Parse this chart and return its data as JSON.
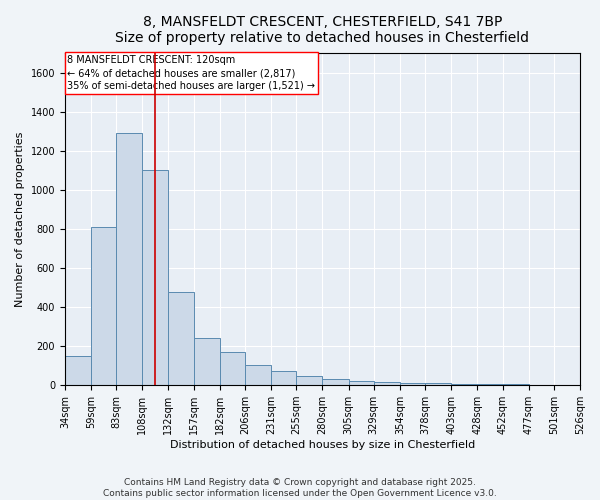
{
  "title_line1": "8, MANSFELDT CRESCENT, CHESTERFIELD, S41 7BP",
  "title_line2": "Size of property relative to detached houses in Chesterfield",
  "xlabel": "Distribution of detached houses by size in Chesterfield",
  "ylabel": "Number of detached properties",
  "annotation_line1": "8 MANSFELDT CRESCENT: 120sqm",
  "annotation_line2": "← 64% of detached houses are smaller (2,817)",
  "annotation_line3": "35% of semi-detached houses are larger (1,521) →",
  "property_size": 120,
  "bar_left_edges": [
    34,
    59,
    83,
    108,
    132,
    157,
    182,
    206,
    231,
    255,
    280,
    305,
    329,
    354,
    378,
    403,
    428,
    452,
    477,
    501
  ],
  "bar_widths": [
    25,
    24,
    25,
    24,
    25,
    25,
    24,
    25,
    24,
    25,
    25,
    24,
    25,
    24,
    25,
    25,
    24,
    25,
    24,
    25
  ],
  "bar_heights": [
    150,
    810,
    1290,
    1100,
    480,
    240,
    170,
    105,
    75,
    45,
    30,
    20,
    15,
    10,
    10,
    8,
    5,
    5,
    3,
    3
  ],
  "xlim": [
    34,
    526
  ],
  "ylim": [
    0,
    1700
  ],
  "yticks": [
    0,
    200,
    400,
    600,
    800,
    1000,
    1200,
    1400,
    1600
  ],
  "xtick_labels": [
    "34sqm",
    "59sqm",
    "83sqm",
    "108sqm",
    "132sqm",
    "157sqm",
    "182sqm",
    "206sqm",
    "231sqm",
    "255sqm",
    "280sqm",
    "305sqm",
    "329sqm",
    "354sqm",
    "378sqm",
    "403sqm",
    "428sqm",
    "452sqm",
    "477sqm",
    "501sqm",
    "526sqm"
  ],
  "xtick_positions": [
    34,
    59,
    83,
    108,
    132,
    157,
    182,
    206,
    231,
    255,
    280,
    305,
    329,
    354,
    378,
    403,
    428,
    452,
    477,
    501,
    526
  ],
  "bar_facecolor": "#ccd9e8",
  "bar_edgecolor": "#5a8ab0",
  "red_line_color": "#cc0000",
  "background_color": "#e8eef5",
  "fig_background_color": "#f0f4f8",
  "grid_color": "#ffffff",
  "footer_line1": "Contains HM Land Registry data © Crown copyright and database right 2025.",
  "footer_line2": "Contains public sector information licensed under the Open Government Licence v3.0.",
  "title_fontsize": 10,
  "axis_label_fontsize": 8,
  "tick_fontsize": 7,
  "annotation_fontsize": 7,
  "footer_fontsize": 6.5
}
